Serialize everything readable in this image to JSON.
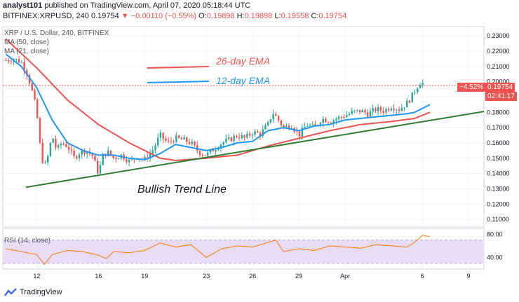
{
  "header": {
    "author": "analyst101",
    "published": "published on TradingView.com, April 07, 2020 05:18:44 UTC",
    "symbol": "BITFINEX:XRPUSD, 240",
    "last": "0.19754",
    "change_arrow": "▼",
    "change": "−0.00110 (−0.55%)",
    "o_label": "O:",
    "o": "0.19898",
    "h_label": "H:",
    "h": "0.19898",
    "l_label": "L:",
    "l": "0.19558",
    "c_label": "C:",
    "c": "0.19754"
  },
  "indicators": {
    "symbol_line": "XRP / U.S. Dollar, 240, BITFINEX",
    "ma1": "MA (50, close)",
    "ma2": "MA (21, close)",
    "rsi": "RSI (14, close)"
  },
  "annotations": {
    "ema26": "26-day EMA",
    "ema12": "12-day EMA",
    "trend": "Bullish Trend Line"
  },
  "price_tags": {
    "change_pct": "−4.52%",
    "last_price": "0.19754",
    "countdown": "02:41:17"
  },
  "branding": {
    "logo_text": "TradingView"
  },
  "colors": {
    "up": "#26a69a",
    "down": "#ef5350",
    "ema26": "#ef5350",
    "ema12": "#2196f3",
    "trend": "#2e7d32",
    "rsi_line": "#f57c00",
    "rsi_band": "#e8dcf7"
  },
  "chart_data": [
    {
      "type": "line",
      "title": "XRP / U.S. Dollar, 240, BITFINEX",
      "price_axis": [
        "0.23000",
        "0.22000",
        "0.21000",
        "0.20000",
        "0.19000",
        "0.18000",
        "0.17000",
        "0.16000",
        "0.15000",
        "0.14000",
        "0.13000",
        "0.12000",
        "0.11000"
      ],
      "ylim": [
        0.105,
        0.236
      ],
      "x_ticks": [
        {
          "label": "12",
          "day": 12
        },
        {
          "label": "16",
          "day": 16
        },
        {
          "label": "19",
          "day": 19
        },
        {
          "label": "23",
          "day": 23
        },
        {
          "label": "26",
          "day": 26
        },
        {
          "label": "29",
          "day": 29
        },
        {
          "label": "Apr",
          "day": 32
        },
        {
          "label": "6",
          "day": 37
        },
        {
          "label": "9",
          "day": 40
        }
      ],
      "series": [
        {
          "name": "26-day EMA",
          "x": [
            10,
            12,
            14,
            16,
            18,
            19,
            20,
            21,
            23,
            25,
            27,
            29,
            31,
            33,
            35,
            36.5,
            37.5
          ],
          "values": [
            0.228,
            0.209,
            0.188,
            0.172,
            0.16,
            0.155,
            0.15,
            0.1485,
            0.15,
            0.152,
            0.158,
            0.163,
            0.168,
            0.172,
            0.174,
            0.176,
            0.18
          ]
        },
        {
          "name": "12-day EMA",
          "x": [
            10,
            11,
            12,
            13,
            14,
            15,
            16,
            17,
            18,
            19,
            20,
            21,
            22,
            23,
            24,
            25,
            26,
            27,
            28,
            29,
            30,
            31,
            32,
            33,
            34,
            35,
            36,
            36.5,
            37.5
          ],
          "values": [
            0.218,
            0.21,
            0.196,
            0.175,
            0.16,
            0.155,
            0.152,
            0.152,
            0.15,
            0.149,
            0.153,
            0.159,
            0.157,
            0.155,
            0.157,
            0.16,
            0.161,
            0.168,
            0.17,
            0.168,
            0.171,
            0.172,
            0.175,
            0.176,
            0.177,
            0.178,
            0.179,
            0.18,
            0.185
          ]
        }
      ],
      "trend_line": {
        "x": [
          11.3,
          41
        ],
        "values": [
          0.131,
          0.1805
        ]
      },
      "candle_path": {
        "x": [
          10,
          10.5,
          11,
          11.4,
          11.8,
          12,
          12.3,
          12.6,
          12.8,
          13,
          13.3,
          13.6,
          14,
          14.4,
          14.8,
          15.2,
          15.6,
          16,
          16.3,
          16.6,
          17,
          17.5,
          18,
          18.5,
          19,
          19.5,
          20,
          20.5,
          21,
          21.5,
          22,
          22.5,
          23,
          23.5,
          24,
          24.5,
          25,
          25.5,
          26,
          26.5,
          27,
          27.3,
          27.6,
          28,
          28.5,
          29,
          29.5,
          30,
          30.5,
          31,
          31.5,
          32,
          32.5,
          33,
          33.5,
          34,
          34.5,
          35,
          35.5,
          36,
          36.3,
          36.6,
          36.9,
          37.2
        ],
        "values": [
          0.214,
          0.215,
          0.213,
          0.205,
          0.19,
          0.18,
          0.15,
          0.145,
          0.155,
          0.165,
          0.155,
          0.16,
          0.158,
          0.15,
          0.154,
          0.155,
          0.152,
          0.14,
          0.152,
          0.154,
          0.15,
          0.152,
          0.148,
          0.151,
          0.149,
          0.155,
          0.165,
          0.16,
          0.163,
          0.162,
          0.16,
          0.154,
          0.152,
          0.156,
          0.16,
          0.162,
          0.165,
          0.163,
          0.167,
          0.166,
          0.172,
          0.18,
          0.176,
          0.17,
          0.172,
          0.165,
          0.172,
          0.17,
          0.176,
          0.174,
          0.176,
          0.178,
          0.18,
          0.181,
          0.179,
          0.182,
          0.181,
          0.184,
          0.182,
          0.186,
          0.19,
          0.196,
          0.2,
          0.198
        ]
      }
    },
    {
      "type": "line",
      "title": "RSI (14, close)",
      "yticks": [
        "80.00",
        "40.00"
      ],
      "ylim": [
        20,
        90
      ],
      "band": [
        30,
        70
      ],
      "series": [
        {
          "name": "RSI (14, close)",
          "x": [
            10,
            11,
            12,
            12.5,
            13,
            14,
            15,
            16,
            16.5,
            17,
            18,
            19,
            20,
            21,
            22,
            23,
            24,
            25,
            26,
            27,
            27.5,
            28,
            29,
            30,
            31,
            32,
            33,
            34,
            35,
            36,
            36.5,
            37,
            37.5
          ],
          "values": [
            55,
            50,
            45,
            28,
            45,
            52,
            50,
            44,
            38,
            50,
            48,
            52,
            65,
            58,
            62,
            40,
            55,
            60,
            58,
            66,
            70,
            50,
            55,
            52,
            60,
            58,
            56,
            62,
            60,
            58,
            66,
            78,
            76
          ]
        }
      ]
    }
  ]
}
